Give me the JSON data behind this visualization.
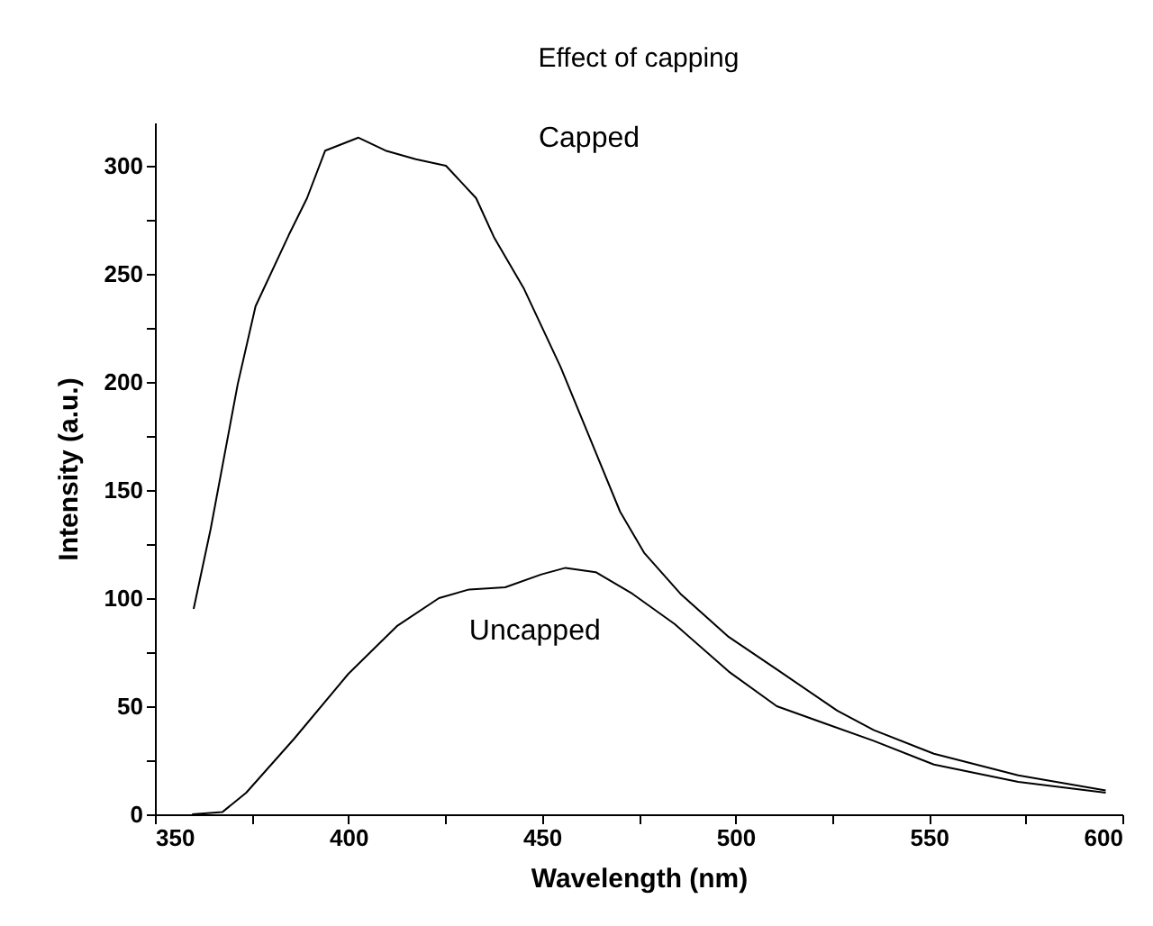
{
  "chart_data": {
    "type": "line",
    "title": "Effect of capping",
    "xlabel": "Wavelength (nm)",
    "ylabel": "Intensity (a.u.)",
    "xlim": [
      350,
      600
    ],
    "ylim": [
      0,
      320
    ],
    "xticks": [
      350,
      {
        "value": 375,
        "label": null
      },
      400,
      {
        "value": 425,
        "label": null
      },
      450,
      {
        "value": 475,
        "label": null
      },
      500,
      {
        "value": 525,
        "label": null
      },
      550,
      {
        "value": 575,
        "label": null
      },
      600
    ],
    "yticks": [
      0,
      {
        "value": 25,
        "label": null
      },
      50,
      {
        "value": 75,
        "label": null
      },
      100,
      {
        "value": 125,
        "label": null
      },
      150,
      {
        "value": 175,
        "label": null
      },
      200,
      {
        "value": 225,
        "label": null
      },
      250,
      {
        "value": 275,
        "label": null
      },
      300
    ],
    "grid": false,
    "line_style": "solid",
    "marker": "none",
    "series": [
      {
        "name": "Capped",
        "color": "#000000",
        "x": [
          360,
          364.4,
          371.4,
          376,
          384.6,
          389.3,
          394,
          402.6,
          409.6,
          417.4,
          425.2,
          433,
          437.6,
          445.4,
          454.8,
          464,
          470.2,
          476.4,
          485.8,
          498.3,
          510.7,
          526.3,
          535.7,
          551.3,
          573.1,
          595.7
        ],
        "values": [
          95,
          132,
          199,
          235,
          268,
          285,
          307,
          313,
          307,
          303,
          300,
          285,
          267,
          243,
          207,
          167,
          140,
          121,
          102,
          82,
          67,
          48,
          39,
          28,
          18,
          11
        ]
      },
      {
        "name": "Uncapped",
        "color": "#000000",
        "x": [
          359.6,
          367.4,
          373.6,
          386,
          400,
          412.5,
          423.4,
          431.2,
          440.5,
          449.9,
          456.1,
          463.9,
          473.4,
          484.3,
          498.3,
          510.7,
          523.2,
          535.7,
          551.3,
          573.1,
          595.7
        ],
        "values": [
          0,
          1,
          10,
          35,
          65,
          87,
          100,
          104,
          105,
          111,
          114,
          112,
          102,
          88,
          66,
          50,
          42,
          34,
          23,
          15,
          10
        ]
      }
    ]
  }
}
